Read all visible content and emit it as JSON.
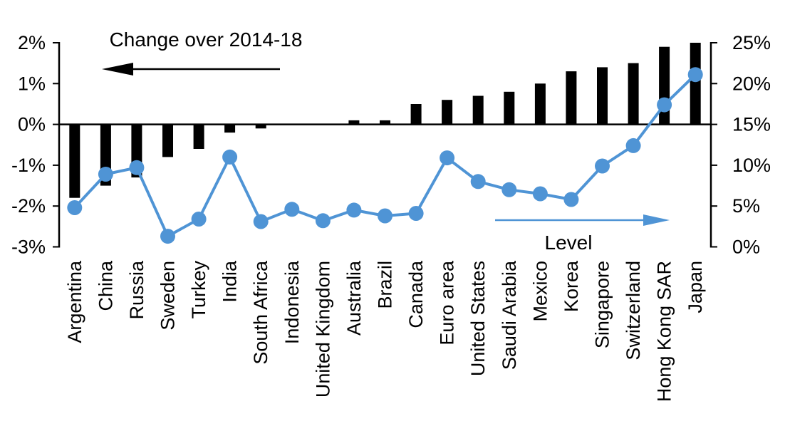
{
  "chart_data": {
    "type": "combo-bar-line",
    "categories": [
      "Argentina",
      "China",
      "Russia",
      "Sweden",
      "Turkey",
      "India",
      "South Africa",
      "Indonesia",
      "United Kingdom",
      "Australia",
      "Brazil",
      "Canada",
      "Euro area",
      "United States",
      "Saudi Arabia",
      "Mexico",
      "Korea",
      "Singapore",
      "Switzerland",
      "Hong Kong SAR",
      "Japan"
    ],
    "series": [
      {
        "name": "Change over 2014-18",
        "type": "bar",
        "axis": "left",
        "color": "#000000",
        "values": [
          -1.8,
          -1.5,
          -1.3,
          -0.8,
          -0.6,
          -0.2,
          -0.1,
          0.0,
          0.0,
          0.1,
          0.1,
          0.5,
          0.6,
          0.7,
          0.8,
          1.0,
          1.3,
          1.4,
          1.5,
          1.9,
          2.0
        ]
      },
      {
        "name": "Level",
        "type": "line",
        "axis": "right",
        "color": "#4f94d5",
        "values": [
          4.8,
          8.9,
          9.7,
          1.3,
          3.4,
          11.0,
          3.1,
          4.6,
          3.2,
          4.5,
          3.8,
          4.1,
          10.9,
          8.0,
          7.0,
          6.5,
          5.8,
          9.9,
          12.4,
          17.4,
          21.1
        ]
      }
    ],
    "left_axis": {
      "ticks": [
        "2%",
        "1%",
        "0%",
        "-1%",
        "-2%",
        "-3%"
      ],
      "tick_values": [
        2,
        1,
        0,
        -1,
        -2,
        -3
      ],
      "range": [
        -3,
        2
      ]
    },
    "right_axis": {
      "ticks": [
        "25%",
        "20%",
        "15%",
        "10%",
        "5%",
        "0%"
      ],
      "tick_values": [
        25,
        20,
        15,
        10,
        5,
        0
      ],
      "range": [
        0,
        25
      ]
    },
    "annotations": {
      "bar_label": "Change over 2014-18",
      "bar_arrow_direction": "left",
      "line_label": "Level",
      "line_arrow_direction": "right"
    },
    "grid": "off",
    "zero_line": true,
    "title": "",
    "xlabel": "",
    "ylabel": ""
  }
}
